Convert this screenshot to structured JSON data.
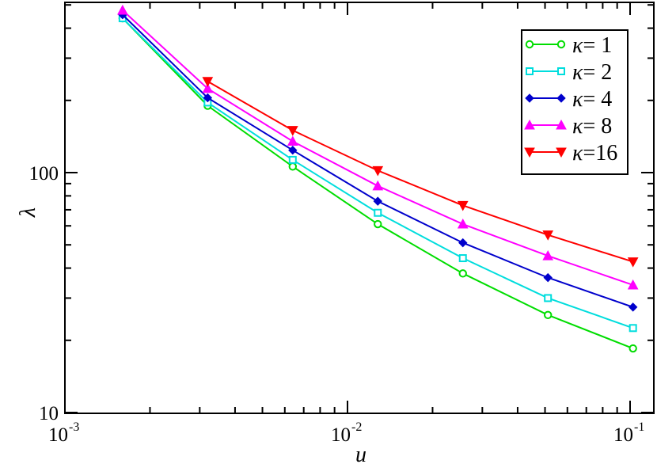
{
  "chart_data": {
    "type": "line",
    "title": "",
    "xlabel": "u",
    "ylabel": "λ",
    "xscale": "log",
    "yscale": "log",
    "xlim": [
      0.001,
      0.12
    ],
    "ylim": [
      10,
      600
    ],
    "x_ticks": [
      {
        "value": 0.001,
        "base": "10",
        "exp": "-3"
      },
      {
        "value": 0.01,
        "base": "10",
        "exp": "-2"
      },
      {
        "value": 0.1,
        "base": "10",
        "exp": "-1"
      }
    ],
    "y_ticks": [
      {
        "value": 10,
        "label": "10"
      },
      {
        "value": 100,
        "label": "100"
      }
    ],
    "x": [
      0.0016,
      0.0032,
      0.0064,
      0.0128,
      0.0256,
      0.0512,
      0.1024
    ],
    "grid": false,
    "legend_position": "top-right",
    "series": [
      {
        "name": "κ= 1",
        "kappa_symbol": "κ",
        "kappa_text": "= 1",
        "color": "#00dd00",
        "marker": "circle",
        "x": [
          0.0016,
          0.0032,
          0.0064,
          0.0128,
          0.0256,
          0.0512,
          0.1024
        ],
        "values": [
          440,
          190,
          106,
          61,
          38,
          25.5,
          18.5
        ]
      },
      {
        "name": "κ= 2",
        "kappa_symbol": "κ",
        "kappa_text": "= 2",
        "color": "#00dddd",
        "marker": "square",
        "x": [
          0.0016,
          0.0032,
          0.0064,
          0.0128,
          0.0256,
          0.0512,
          0.1024
        ],
        "values": [
          440,
          196,
          113,
          68,
          44,
          30,
          22.5
        ]
      },
      {
        "name": "κ= 4",
        "kappa_symbol": "κ",
        "kappa_text": "= 4",
        "color": "#0000cc",
        "marker": "diamond",
        "x": [
          0.0016,
          0.0032,
          0.0064,
          0.0128,
          0.0256,
          0.0512,
          0.1024
        ],
        "values": [
          455,
          205,
          124,
          76,
          51,
          36.5,
          27.5
        ]
      },
      {
        "name": "κ= 8",
        "kappa_symbol": "κ",
        "kappa_text": "= 8",
        "color": "#ff00ff",
        "marker": "triangle-up",
        "x": [
          0.0016,
          0.0032,
          0.0064,
          0.0128,
          0.0256,
          0.0512,
          0.1024
        ],
        "values": [
          475,
          224,
          135,
          88,
          61,
          45,
          34
        ]
      },
      {
        "name": "κ=16",
        "kappa_symbol": "κ",
        "kappa_text": "=16",
        "color": "#ff0000",
        "marker": "triangle-down",
        "x": [
          0.0032,
          0.0064,
          0.0128,
          0.0256,
          0.0512,
          0.1024
        ],
        "values": [
          240,
          150,
          102,
          73,
          55,
          42.5
        ]
      }
    ]
  }
}
